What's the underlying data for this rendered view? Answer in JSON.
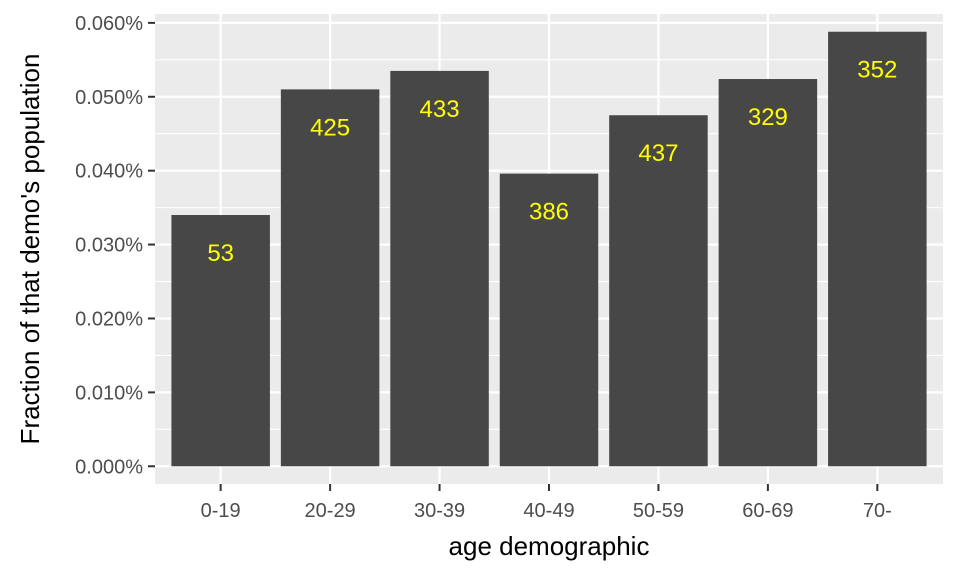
{
  "colors": {
    "panel_background": "#ebebeb",
    "grid_major": "#ffffff",
    "bar_fill": "#474747",
    "data_label": "#ffff00",
    "tick_label": "#4d4d4d",
    "tick_mark": "#333333"
  },
  "chart_data": {
    "type": "bar",
    "title": "",
    "xlabel": "age demographic",
    "ylabel": "Fraction of that demo's population",
    "categories": [
      "0-19",
      "20-29",
      "30-39",
      "40-49",
      "50-59",
      "60-69",
      "70-"
    ],
    "values": [
      0.00034,
      0.00051,
      0.000535,
      0.000396,
      0.000475,
      0.000524,
      0.000588
    ],
    "labels": [
      "53",
      "425",
      "433",
      "386",
      "437",
      "329",
      "352"
    ],
    "ylim": [
      -2.4e-05,
      0.000612
    ],
    "yticks": [
      0,
      0.0001,
      0.0002,
      0.0003,
      0.0004,
      0.0005,
      0.0006
    ],
    "ytick_labels": [
      "0.000%",
      "0.010%",
      "0.020%",
      "0.030%",
      "0.040%",
      "0.050%",
      "0.060%"
    ],
    "grid": true,
    "legend": "none"
  }
}
